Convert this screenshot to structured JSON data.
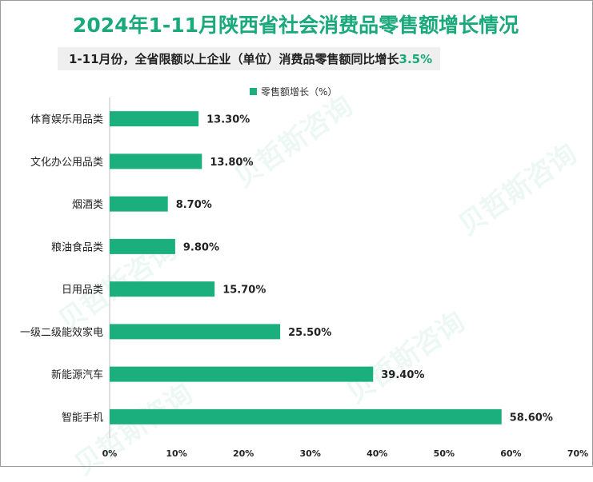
{
  "title": "2024年1-11月陕西省社会消费品零售额增长情况",
  "subtitle": {
    "text": "1-11月份，全省限额以上企业（单位）消费品零售额同比增长",
    "highlight": "3.5%"
  },
  "watermark": "贝哲斯咨询",
  "colors": {
    "accent": "#1aa97a",
    "bar": "#1aaf7c",
    "axis": "#bfbfbf",
    "text": "#222222"
  },
  "chart_data": {
    "type": "bar",
    "orientation": "horizontal",
    "legend_position": "top-center",
    "grid": false,
    "categories": [
      "体育娱乐用品类",
      "文化办公用品类",
      "烟酒类",
      "粮油食品类",
      "日用品类",
      "一级二级能效家电",
      "新能源汽车",
      "智能手机"
    ],
    "series": [
      {
        "name": "零售额增长（%）",
        "values": [
          13.3,
          13.8,
          8.7,
          9.8,
          15.7,
          25.5,
          39.4,
          58.6
        ],
        "labels": [
          "13.30%",
          "13.80%",
          "8.70%",
          "9.80%",
          "15.70%",
          "25.50%",
          "39.40%",
          "58.60%"
        ]
      }
    ],
    "xlim": [
      0,
      70
    ],
    "x_ticks": [
      "0%",
      "10%",
      "20%",
      "30%",
      "40%",
      "50%",
      "60%",
      "70%"
    ],
    "title": "",
    "xlabel": "",
    "ylabel": ""
  }
}
